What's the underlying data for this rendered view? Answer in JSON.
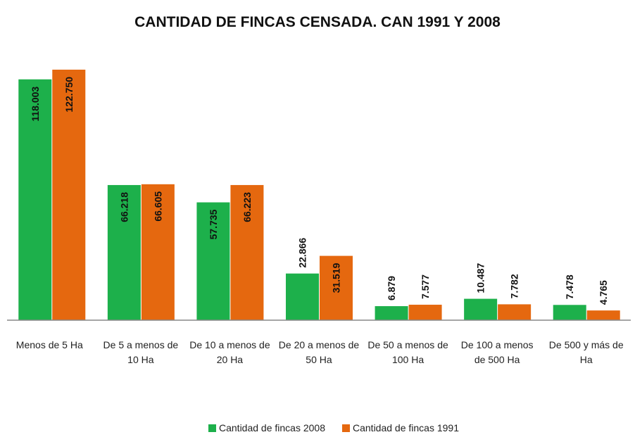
{
  "chart_data": {
    "type": "bar",
    "title": "CANTIDAD DE FINCAS CENSADA. CAN 1991 Y 2008",
    "categories": [
      "Menos de 5 Ha",
      "De 5 a menos de 10 Ha",
      "De 10 a menos de 20 Ha",
      "De 20 a menos de 50 Ha",
      "De 50 a menos de 100 Ha",
      "De 100 a menos de 500 Ha",
      "De 500 y más de Ha"
    ],
    "series": [
      {
        "name": "Cantidad de fincas 2008",
        "color": "#1db04b",
        "values": [
          118003,
          66218,
          57735,
          22866,
          6879,
          10487,
          7478
        ],
        "value_labels": [
          "118.003",
          "66.218",
          "57.735",
          "22.866",
          "6.879",
          "10.487",
          "7.478"
        ]
      },
      {
        "name": "Cantidad de fincas 1991",
        "color": "#e5680f",
        "values": [
          122750,
          66605,
          66223,
          31519,
          7577,
          7782,
          4765
        ],
        "value_labels": [
          "122.750",
          "66.605",
          "66.223",
          "31.519",
          "7.577",
          "7.782",
          "4.765"
        ]
      }
    ],
    "legend": "bottom"
  }
}
